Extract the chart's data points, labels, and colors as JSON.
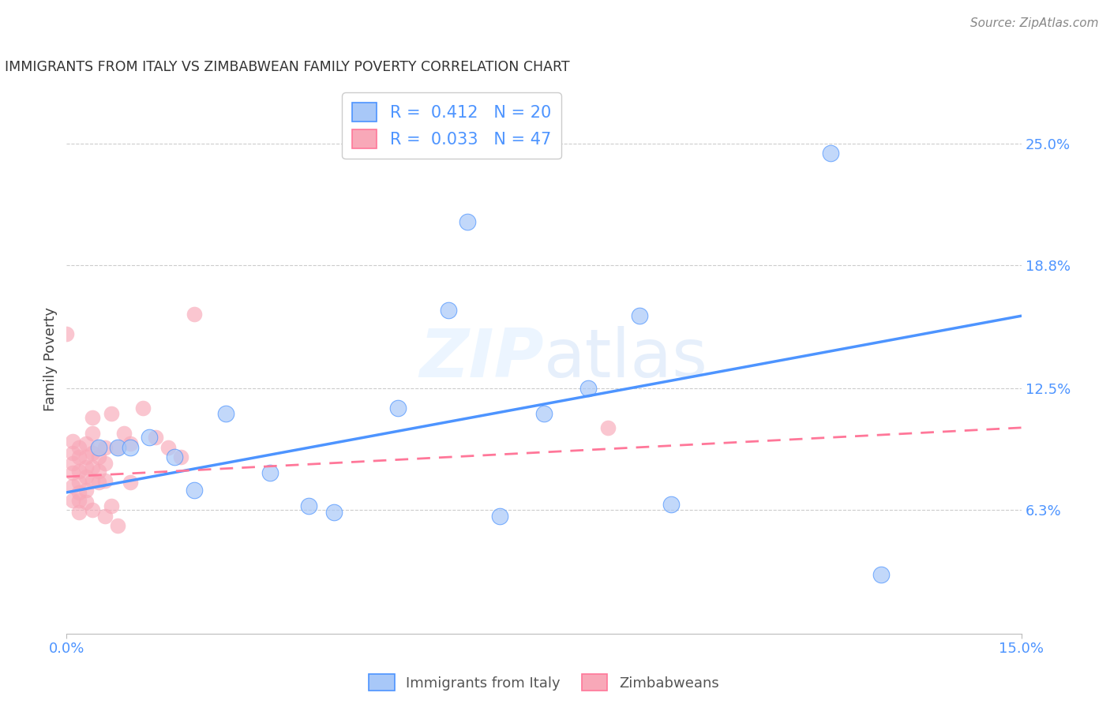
{
  "title": "IMMIGRANTS FROM ITALY VS ZIMBABWEAN FAMILY POVERTY CORRELATION CHART",
  "source": "Source: ZipAtlas.com",
  "xlabel_italy": "Immigrants from Italy",
  "xlabel_zimbabwe": "Zimbabweans",
  "ylabel": "Family Poverty",
  "xmin": 0.0,
  "xmax": 0.15,
  "ymin": 0.0,
  "ymax": 0.28,
  "yticks": [
    0.063,
    0.125,
    0.188,
    0.25
  ],
  "ytick_labels": [
    "6.3%",
    "12.5%",
    "18.8%",
    "25.0%"
  ],
  "xtick_labels": [
    "0.0%",
    "15.0%"
  ],
  "italy_R": "0.412",
  "italy_N": "20",
  "zimbabwe_R": "0.033",
  "zimbabwe_N": "47",
  "italy_color": "#a8c8f8",
  "zimbabwe_color": "#f8a8b8",
  "italy_line_color": "#4d94ff",
  "zimbabwe_line_color": "#ff7799",
  "watermark_color": "#ddeeff",
  "italy_scatter_x": [
    0.005,
    0.008,
    0.01,
    0.013,
    0.017,
    0.02,
    0.025,
    0.032,
    0.038,
    0.042,
    0.052,
    0.06,
    0.068,
    0.075,
    0.082,
    0.09,
    0.095,
    0.063,
    0.12,
    0.128
  ],
  "italy_scatter_y": [
    0.095,
    0.095,
    0.095,
    0.1,
    0.09,
    0.073,
    0.112,
    0.082,
    0.065,
    0.062,
    0.115,
    0.165,
    0.06,
    0.112,
    0.125,
    0.162,
    0.066,
    0.21,
    0.245,
    0.03
  ],
  "zimbabwe_scatter_x": [
    0.0,
    0.001,
    0.001,
    0.001,
    0.001,
    0.001,
    0.001,
    0.002,
    0.002,
    0.002,
    0.002,
    0.002,
    0.002,
    0.002,
    0.003,
    0.003,
    0.003,
    0.003,
    0.003,
    0.003,
    0.004,
    0.004,
    0.004,
    0.004,
    0.004,
    0.004,
    0.005,
    0.005,
    0.005,
    0.005,
    0.006,
    0.006,
    0.006,
    0.006,
    0.007,
    0.007,
    0.008,
    0.008,
    0.009,
    0.01,
    0.01,
    0.012,
    0.014,
    0.016,
    0.018,
    0.02,
    0.085
  ],
  "zimbabwe_scatter_y": [
    0.153,
    0.098,
    0.092,
    0.087,
    0.082,
    0.075,
    0.068,
    0.095,
    0.09,
    0.083,
    0.077,
    0.072,
    0.068,
    0.062,
    0.097,
    0.09,
    0.085,
    0.08,
    0.073,
    0.067,
    0.11,
    0.102,
    0.092,
    0.085,
    0.078,
    0.063,
    0.095,
    0.09,
    0.083,
    0.077,
    0.095,
    0.087,
    0.078,
    0.06,
    0.112,
    0.065,
    0.095,
    0.055,
    0.102,
    0.097,
    0.077,
    0.115,
    0.1,
    0.095,
    0.09,
    0.163,
    0.105
  ],
  "italy_trend_x": [
    0.0,
    0.15
  ],
  "italy_trend_y": [
    0.072,
    0.162
  ],
  "zimbabwe_trend_x": [
    0.0,
    0.15
  ],
  "zimbabwe_trend_y": [
    0.08,
    0.105
  ]
}
